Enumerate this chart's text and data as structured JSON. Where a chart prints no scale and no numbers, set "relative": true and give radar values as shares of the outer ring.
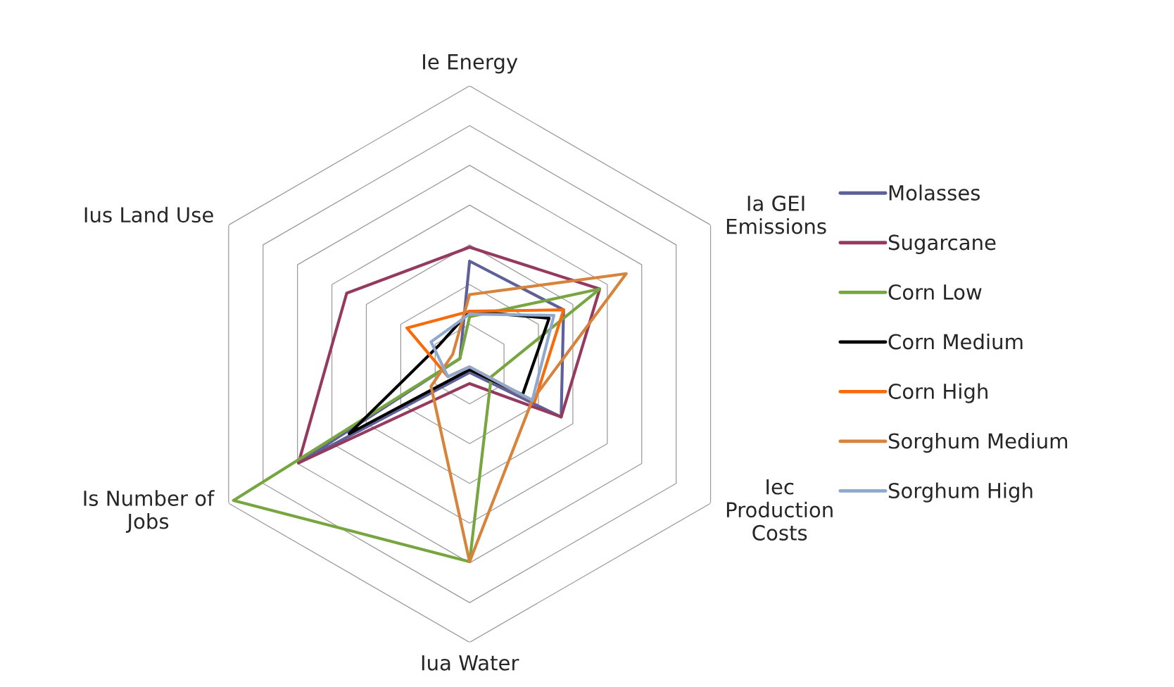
{
  "chart_data": {
    "type": "radar",
    "relative": true,
    "grid": true,
    "legend": "right",
    "marker": "none",
    "categories": [
      "Ie Energy",
      "Ia GEI Emissions",
      "Iec Production Costs",
      "Iua Water",
      "Is Number of Jobs",
      "Ius Land Use"
    ],
    "series": [
      {
        "name": "Molasses",
        "color": "#5f5f9a",
        "values": [
          0.37,
          0.39,
          0.38,
          0.03,
          0.71,
          0.04
        ]
      },
      {
        "name": "Sugarcane",
        "color": "#953a5e",
        "values": [
          0.42,
          0.54,
          0.38,
          0.07,
          0.71,
          0.51
        ]
      },
      {
        "name": "Corn Low",
        "color": "#77a540",
        "values": [
          0.17,
          0.54,
          0.09,
          0.71,
          0.98,
          0.04
        ]
      },
      {
        "name": "Corn Medium",
        "color": "#000000",
        "values": [
          0.19,
          0.33,
          0.22,
          0.02,
          0.5,
          0.13
        ]
      },
      {
        "name": "Corn High",
        "color": "#f96a0b",
        "values": [
          0.19,
          0.39,
          0.27,
          0.01,
          0.09,
          0.26
        ]
      },
      {
        "name": "Sorghum Medium",
        "color": "#d8833c",
        "values": [
          0.25,
          0.65,
          0.26,
          0.71,
          0.16,
          0.07
        ]
      },
      {
        "name": "Sorghum High",
        "color": "#8ea8d0",
        "values": [
          0.18,
          0.35,
          0.26,
          0.01,
          0.09,
          0.16
        ]
      }
    ]
  }
}
